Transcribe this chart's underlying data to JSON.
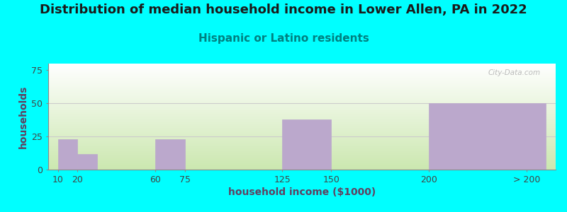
{
  "title": "Distribution of median household income in Lower Allen, PA in 2022",
  "subtitle": "Hispanic or Latino residents",
  "xlabel": "household income ($1000)",
  "ylabel": "households",
  "background_outer": "#00FFFF",
  "bar_color": "#BBA8CC",
  "yticks": [
    0,
    25,
    50,
    75
  ],
  "ylim": [
    0,
    80
  ],
  "xtick_positions": [
    10,
    20,
    60,
    75,
    125,
    150,
    200,
    250
  ],
  "xtick_labels": [
    "10",
    "20",
    "60",
    "75",
    "125",
    "150",
    "200",
    "> 200"
  ],
  "bar_lefts": [
    10,
    20,
    60,
    125,
    200
  ],
  "bar_rights": [
    20,
    30,
    75,
    150,
    260
  ],
  "bar_heights": [
    23,
    12,
    23,
    38,
    50
  ],
  "title_fontsize": 13,
  "subtitle_fontsize": 11,
  "subtitle_color": "#008080",
  "axis_label_fontsize": 10,
  "tick_fontsize": 9,
  "watermark": "City-Data.com",
  "plot_bg_top": "#ffffff",
  "plot_bg_bottom": "#cce8b0",
  "xlim_left": 5,
  "xlim_right": 265
}
